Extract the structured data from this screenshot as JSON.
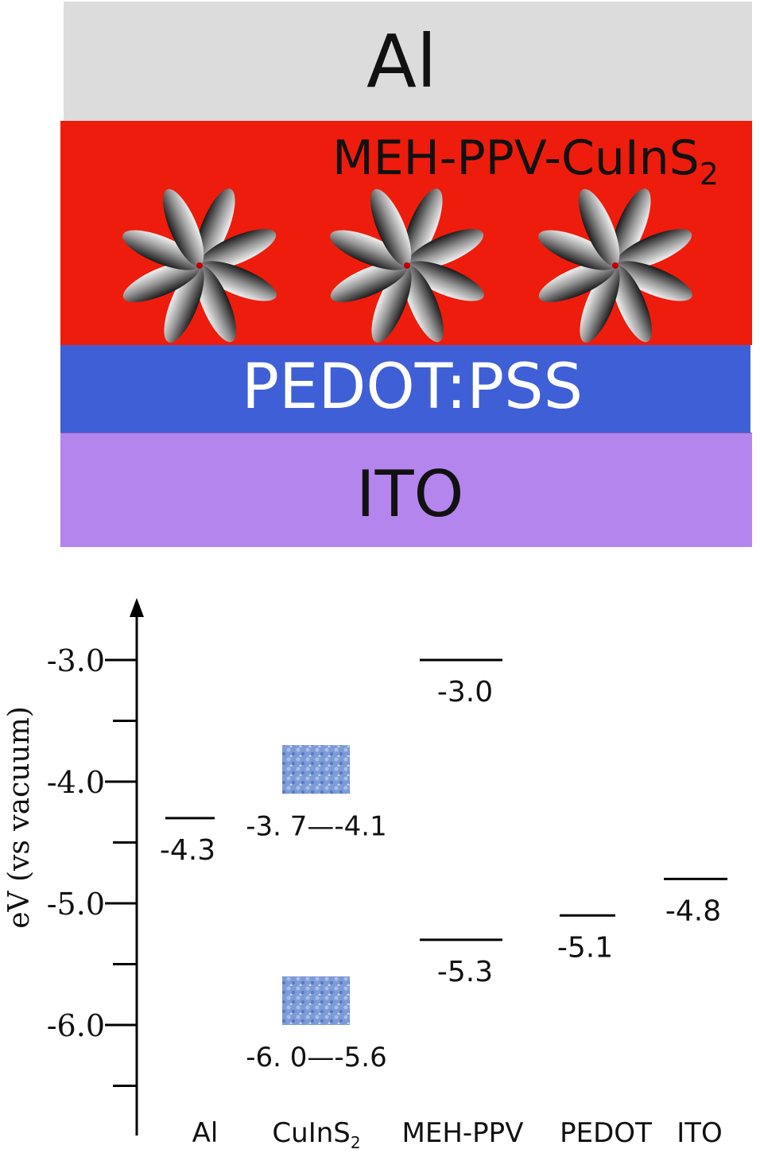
{
  "device_stack": {
    "layers": [
      {
        "id": "al",
        "label": "Al",
        "color": "#dcdcdc"
      },
      {
        "id": "active",
        "label": "MEH-PPV-CuInS",
        "subscript": "2",
        "color": "#ee1c0c"
      },
      {
        "id": "pedot",
        "label": "PEDOT:PSS",
        "color": "#3f5fd6"
      },
      {
        "id": "ito",
        "label": "ITO",
        "color": "#b585ee"
      }
    ],
    "nanoparticle_count": 3
  },
  "energy_diagram": {
    "y_axis": {
      "label": "eV (vs vacuum)",
      "ticks": [
        "-3.0",
        "-4.0",
        "-5.0",
        "-6.0"
      ],
      "range": [
        -6.0,
        -3.0
      ]
    },
    "materials": [
      {
        "name": "Al",
        "levels": [
          {
            "value": -4.3,
            "label": "-4.3",
            "kind": "line"
          }
        ]
      },
      {
        "name": "CuInS",
        "subscript": "2",
        "levels": [
          {
            "range": [
              -4.1,
              -3.7
            ],
            "label": "-3. 7—-4.1",
            "kind": "band"
          },
          {
            "range": [
              -6.0,
              -5.6
            ],
            "label": "-6. 0—-5.6",
            "kind": "band"
          }
        ]
      },
      {
        "name": "MEH-PPV",
        "levels": [
          {
            "value": -3.0,
            "label": "-3.0",
            "kind": "line"
          },
          {
            "value": -5.3,
            "label": "-5.3",
            "kind": "line"
          }
        ]
      },
      {
        "name": "PEDOT",
        "levels": [
          {
            "value": -5.1,
            "label": "-5.1",
            "kind": "line"
          }
        ]
      },
      {
        "name": "ITO",
        "levels": [
          {
            "value": -4.8,
            "label": "-4.8",
            "kind": "line"
          }
        ]
      }
    ],
    "band_color": "#6f8fcf"
  }
}
